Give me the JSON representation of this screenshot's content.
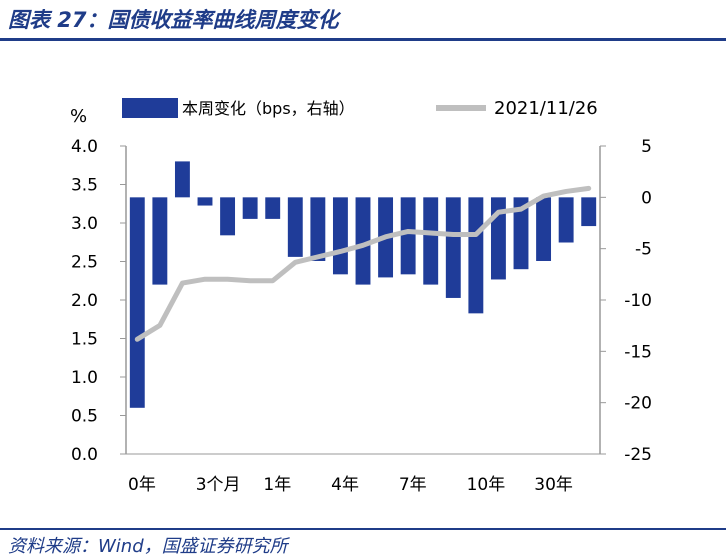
{
  "title": "图表 27：国债收益率曲线周度变化",
  "source": "资料来源：Wind，国盛证券研究所",
  "chart_data": {
    "type": "bar+line",
    "y_unit_label": "%",
    "legend": {
      "bar_label": "本周变化（bps，右轴）",
      "line_label": "2021/11/26"
    },
    "colors": {
      "bar": "#1f3c99",
      "line": "#bfbfbf"
    },
    "x_tick_labels": [
      "0年",
      "3个月",
      "1年",
      "4年",
      "7年",
      "10年",
      "30年"
    ],
    "x_tick_category_index": [
      0,
      3,
      6,
      9,
      12,
      15,
      18
    ],
    "categories_count": 21,
    "left_axis": {
      "min": 0,
      "max": 4,
      "step": 0.5,
      "ticks": [
        "0.0",
        "0.5",
        "1.0",
        "1.5",
        "2.0",
        "2.5",
        "3.0",
        "3.5",
        "4.0"
      ]
    },
    "right_axis": {
      "min": -25,
      "max": 5,
      "step": 5,
      "ticks": [
        "5",
        "0",
        "-5",
        "-10",
        "-15",
        "-20",
        "-25"
      ]
    },
    "bar_values_bps": [
      -20.5,
      -8.5,
      3.5,
      -0.8,
      -3.7,
      -2.1,
      -2.1,
      -5.8,
      -6.2,
      -7.5,
      -8.5,
      -7.8,
      -7.5,
      -8.5,
      -9.8,
      -11.3,
      -8.0,
      -7.0,
      -6.2,
      -4.4,
      -2.8
    ],
    "line_values_pct": [
      1.49,
      1.67,
      2.22,
      2.27,
      2.27,
      2.25,
      2.25,
      2.49,
      2.56,
      2.63,
      2.71,
      2.82,
      2.89,
      2.87,
      2.85,
      2.85,
      3.14,
      3.18,
      3.35,
      3.41,
      3.45
    ]
  }
}
